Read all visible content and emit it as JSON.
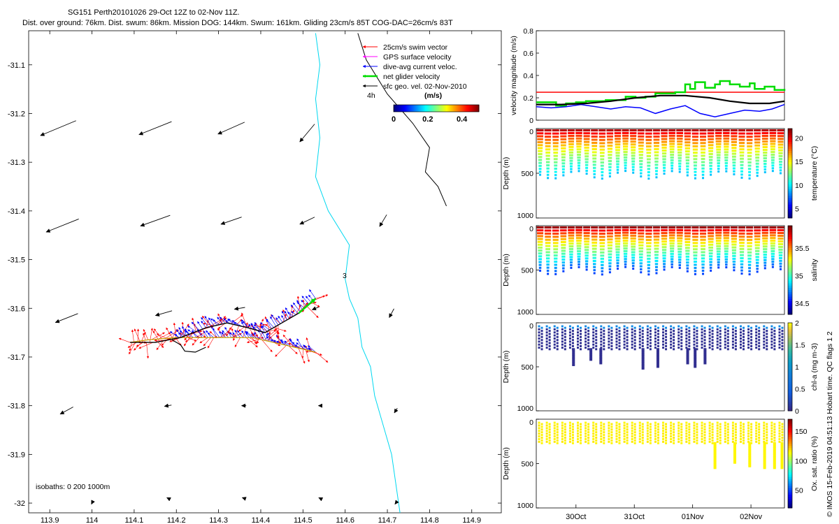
{
  "title": {
    "line1": "SG151 Perth20101026 29-Oct 12Z to 02-Nov 11Z.",
    "line2": "Dist. over ground: 76km. Dist. swum: 86km. Mission DOG: 144km. Swum: 161km. Gliding 23cm/s 85T COG-DAC=26cm/s 83T"
  },
  "side_note": "© IMOS 15-Feb-2019 04:51:13 Hobart time. QC flags 1  2",
  "colors": {
    "swim_vector": "#ff0000",
    "gps_velocity": "#ff00ff",
    "dive_avg": "#0000ff",
    "net_velocity": "#00dd00",
    "sfc_geo": "#000000",
    "isobath_200": "#00d8f0",
    "isobath_1000": "#000000"
  },
  "chart_data": [
    {
      "type": "scatter",
      "id": "map",
      "xlabel": "",
      "ylabel": "",
      "xlim": [
        113.85,
        114.97
      ],
      "ylim": [
        -32.02,
        -31.03
      ],
      "xticks": [
        "113.9",
        "114",
        "114.1",
        "114.2",
        "114.3",
        "114.4",
        "114.5",
        "114.6",
        "114.7",
        "114.8",
        "114.9"
      ],
      "yticks": [
        "-31.1",
        "-31.2",
        "-31.3",
        "-31.4",
        "-31.5",
        "-31.6",
        "-31.7",
        "-31.8",
        "-31.9",
        "-32"
      ],
      "legend": [
        {
          "label": "25cm/s swim vector",
          "color": "#ff0000"
        },
        {
          "label": "GPS surface velocity",
          "color": "#ff00ff"
        },
        {
          "label": "dive-avg current veloc.",
          "color": "#0000ff"
        },
        {
          "label": "net glider velocity",
          "color": "#00dd00"
        },
        {
          "label": "sfc geo. vel. 02-Nov-2010",
          "color": "#000000"
        }
      ],
      "legend_position": "top-right",
      "colorbar": {
        "title": "(m/s)",
        "ticks": [
          "0",
          "0.2",
          "0.4"
        ],
        "range": [
          0,
          0.5
        ],
        "colormap": "jet"
      },
      "label_4h": "4h",
      "label_3": "3",
      "isobath_text": "isobaths: 0   200  1000m",
      "geo_vectors": [
        {
          "lon": 113.92,
          "lat": -31.23,
          "u": -0.6,
          "v": -0.25
        },
        {
          "lon": 114.15,
          "lat": -31.23,
          "u": -0.55,
          "v": -0.22
        },
        {
          "lon": 114.33,
          "lat": -31.23,
          "u": -0.45,
          "v": -0.2
        },
        {
          "lon": 114.51,
          "lat": -31.24,
          "u": -0.25,
          "v": -0.3
        },
        {
          "lon": 113.93,
          "lat": -31.43,
          "u": -0.55,
          "v": -0.22
        },
        {
          "lon": 114.15,
          "lat": -31.42,
          "u": -0.5,
          "v": -0.18
        },
        {
          "lon": 114.33,
          "lat": -31.42,
          "u": -0.35,
          "v": -0.12
        },
        {
          "lon": 114.51,
          "lat": -31.42,
          "u": -0.25,
          "v": -0.12
        },
        {
          "lon": 114.69,
          "lat": -31.42,
          "u": -0.12,
          "v": -0.2
        },
        {
          "lon": 113.94,
          "lat": -31.62,
          "u": -0.38,
          "v": -0.15
        },
        {
          "lon": 114.17,
          "lat": -31.61,
          "u": -0.28,
          "v": -0.08
        },
        {
          "lon": 114.35,
          "lat": -31.6,
          "u": -0.18,
          "v": -0.03
        },
        {
          "lon": 114.53,
          "lat": -31.6,
          "u": -0.12,
          "v": -0.05
        },
        {
          "lon": 114.71,
          "lat": -31.61,
          "u": -0.08,
          "v": -0.15
        },
        {
          "lon": 113.94,
          "lat": -31.81,
          "u": -0.22,
          "v": -0.12
        },
        {
          "lon": 114.18,
          "lat": -31.8,
          "u": -0.12,
          "v": -0.02
        },
        {
          "lon": 114.36,
          "lat": -31.8,
          "u": -0.08,
          "v": 0.0
        },
        {
          "lon": 114.54,
          "lat": -31.8,
          "u": -0.05,
          "v": 0.0
        },
        {
          "lon": 114.72,
          "lat": -31.81,
          "u": -0.05,
          "v": -0.08
        },
        {
          "lon": 114.0,
          "lat": -32.0,
          "u": -0.02,
          "v": -0.04
        },
        {
          "lon": 114.18,
          "lat": -31.99,
          "u": -0.04,
          "v": 0.02
        },
        {
          "lon": 114.36,
          "lat": -31.99,
          "u": -0.06,
          "v": 0.02
        },
        {
          "lon": 114.54,
          "lat": -31.99,
          "u": -0.04,
          "v": 0.02
        },
        {
          "lon": 114.72,
          "lat": -32.0,
          "u": -0.03,
          "v": -0.04
        }
      ],
      "track_lower": [
        [
          114.09,
          -31.67
        ],
        [
          114.13,
          -31.665
        ],
        [
          114.2,
          -31.66
        ],
        [
          114.26,
          -31.66
        ],
        [
          114.32,
          -31.66
        ],
        [
          114.38,
          -31.66
        ],
        [
          114.43,
          -31.67
        ],
        [
          114.48,
          -31.68
        ],
        [
          114.53,
          -31.69
        ]
      ],
      "track_upper": [
        [
          114.09,
          -31.67
        ],
        [
          114.15,
          -31.67
        ],
        [
          114.21,
          -31.66
        ],
        [
          114.27,
          -31.64
        ],
        [
          114.32,
          -31.63
        ],
        [
          114.37,
          -31.64
        ],
        [
          114.41,
          -31.65
        ],
        [
          114.45,
          -31.63
        ],
        [
          114.49,
          -31.61
        ],
        [
          114.53,
          -31.58
        ]
      ],
      "track_curl": [
        [
          114.19,
          -31.665
        ],
        [
          114.21,
          -31.675
        ],
        [
          114.22,
          -31.688
        ],
        [
          114.245,
          -31.69
        ],
        [
          114.27,
          -31.68
        ]
      ],
      "isobath_200": [
        [
          114.53,
          -31.035
        ],
        [
          114.54,
          -31.1
        ],
        [
          114.53,
          -31.17
        ],
        [
          114.54,
          -31.25
        ],
        [
          114.53,
          -31.33
        ],
        [
          114.56,
          -31.4
        ],
        [
          114.61,
          -31.47
        ],
        [
          114.6,
          -31.54
        ],
        [
          114.61,
          -31.58
        ],
        [
          114.63,
          -31.62
        ],
        [
          114.64,
          -31.68
        ],
        [
          114.66,
          -31.72
        ],
        [
          114.67,
          -31.78
        ],
        [
          114.69,
          -31.84
        ],
        [
          114.71,
          -31.9
        ],
        [
          114.72,
          -31.96
        ],
        [
          114.73,
          -32.02
        ]
      ],
      "isobath_1000": [
        [
          114.63,
          -31.035
        ],
        [
          114.65,
          -31.09
        ],
        [
          114.7,
          -31.16
        ],
        [
          114.76,
          -31.22
        ],
        [
          114.8,
          -31.27
        ],
        [
          114.79,
          -31.32
        ],
        [
          114.82,
          -31.35
        ],
        [
          114.84,
          -31.39
        ]
      ]
    },
    {
      "type": "line",
      "id": "velocity",
      "ylabel": "velocity magnitude (m/s)",
      "ylim": [
        0,
        0.8
      ],
      "yticks": [
        "0",
        "0.2",
        "0.4",
        "0.6",
        "0.8"
      ],
      "series": [
        {
          "name": "swim vector (25cm/s)",
          "color": "#ff0000",
          "x": [
            0,
            1
          ],
          "y": [
            0.25,
            0.25
          ]
        },
        {
          "name": "net glider velocity",
          "color": "#00dd00",
          "x": [
            0.0,
            0.05,
            0.08,
            0.12,
            0.16,
            0.2,
            0.24,
            0.28,
            0.32,
            0.36,
            0.4,
            0.44,
            0.48,
            0.52,
            0.56,
            0.6,
            0.62,
            0.64,
            0.68,
            0.72,
            0.74,
            0.78,
            0.82,
            0.86,
            0.88,
            0.92,
            0.96,
            1.0
          ],
          "y": [
            0.16,
            0.16,
            0.13,
            0.15,
            0.16,
            0.17,
            0.17,
            0.18,
            0.18,
            0.21,
            0.2,
            0.21,
            0.24,
            0.24,
            0.25,
            0.32,
            0.28,
            0.34,
            0.29,
            0.32,
            0.35,
            0.32,
            0.3,
            0.33,
            0.28,
            0.3,
            0.27,
            0.28
          ]
        },
        {
          "name": "dive-avg current",
          "color": "#0000ff",
          "x": [
            0.0,
            0.06,
            0.12,
            0.18,
            0.24,
            0.3,
            0.36,
            0.42,
            0.48,
            0.54,
            0.6,
            0.66,
            0.72,
            0.78,
            0.84,
            0.9,
            0.95,
            1.0
          ],
          "y": [
            0.12,
            0.11,
            0.12,
            0.14,
            0.12,
            0.1,
            0.12,
            0.11,
            0.06,
            0.1,
            0.13,
            0.06,
            0.03,
            0.06,
            0.09,
            0.08,
            0.1,
            0.14
          ]
        },
        {
          "name": "sfc geo. velocity",
          "color": "#000000",
          "x": [
            0.0,
            0.1,
            0.2,
            0.3,
            0.4,
            0.5,
            0.6,
            0.7,
            0.78,
            0.86,
            0.94,
            1.0
          ],
          "y": [
            0.14,
            0.14,
            0.15,
            0.17,
            0.2,
            0.22,
            0.22,
            0.2,
            0.17,
            0.15,
            0.15,
            0.17
          ]
        }
      ]
    },
    {
      "type": "scatter",
      "id": "temperature",
      "ylabel": "Depth (m)",
      "clabel": "temperature (°C)",
      "ylim": [
        0,
        1000
      ],
      "yticks": [
        "0",
        "500",
        "1000"
      ],
      "cticks": [
        "5",
        "10",
        "15",
        "20"
      ],
      "crange": [
        3,
        22
      ],
      "profiles": 32,
      "top_depth": 20,
      "bottom_depth": 560,
      "top_value": 21,
      "bottom_value": 9
    },
    {
      "type": "scatter",
      "id": "salinity",
      "ylabel": "Depth (m)",
      "clabel": "salinity",
      "ylim": [
        0,
        1000
      ],
      "yticks": [
        "0",
        "500",
        "1000"
      ],
      "cticks": [
        "34.5",
        "35",
        "35.5"
      ],
      "crange": [
        34.3,
        35.9
      ],
      "profiles": 32,
      "top_depth": 20,
      "bottom_depth": 550,
      "top_value": 35.85,
      "bottom_value": 34.6
    },
    {
      "type": "scatter",
      "id": "chla",
      "ylabel": "Depth (m)",
      "clabel": "chl-a (mg m-3)",
      "ylim": [
        0,
        1000
      ],
      "yticks": [
        "0",
        "500",
        "1000"
      ],
      "cticks": [
        "0",
        "0.5",
        "1",
        "1.5",
        "2"
      ],
      "crange": [
        0,
        2
      ],
      "profiles": 32,
      "top_depth": 40,
      "bottom_depth": 300,
      "deep_spikes": [
        [
          0.15,
          480
        ],
        [
          0.22,
          430
        ],
        [
          0.26,
          470
        ],
        [
          0.43,
          520
        ],
        [
          0.49,
          510
        ],
        [
          0.61,
          470
        ],
        [
          0.64,
          510
        ],
        [
          0.68,
          470
        ]
      ]
    },
    {
      "type": "scatter",
      "id": "oxygen",
      "ylabel": "Depth (m)",
      "clabel": "Ox. sat. ratio (%)",
      "ylim": [
        0,
        1000
      ],
      "yticks": [
        "0",
        "500",
        "1000"
      ],
      "cticks": [
        "50",
        "100",
        "150"
      ],
      "crange": [
        20,
        170
      ],
      "profiles": 32,
      "top_depth": 40,
      "bottom_depth": 270,
      "deep_spikes": [
        [
          0.72,
          560
        ],
        [
          0.8,
          500
        ],
        [
          0.86,
          540
        ],
        [
          0.92,
          560
        ],
        [
          0.96,
          560
        ],
        [
          0.99,
          550
        ]
      ]
    }
  ],
  "time_axis": {
    "ticks": [
      "30Oct",
      "31Oct",
      "01Nov",
      "02Nov"
    ],
    "positions": [
      0.16,
      0.395,
      0.63,
      0.865
    ]
  }
}
